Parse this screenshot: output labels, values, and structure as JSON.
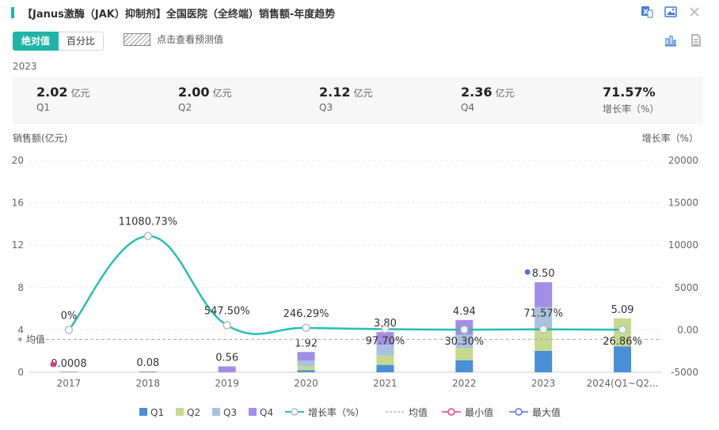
{
  "header": {
    "title": "【Janus激酶（JAK）抑制剂】全国医院（全终端）销售额-年度趋势"
  },
  "toggle": {
    "absolute_label": "绝对值",
    "percent_label": "百分比"
  },
  "forecast_label": "点击查看预测值",
  "summary": {
    "year": "2023",
    "items": [
      {
        "value": "2.02",
        "unit": "亿元",
        "label": "Q1"
      },
      {
        "value": "2.00",
        "unit": "亿元",
        "label": "Q2"
      },
      {
        "value": "2.12",
        "unit": "亿元",
        "label": "Q3"
      },
      {
        "value": "2.36",
        "unit": "亿元",
        "label": "Q4"
      },
      {
        "value": "71.57%",
        "unit": "",
        "label": "增长率（%）"
      }
    ]
  },
  "colors": {
    "accent": "#1fb5a6",
    "Q1": "#4a90d9",
    "Q2": "#c5da8e",
    "Q3": "#a9c2de",
    "Q4": "#a38ee6",
    "growth_line": "#26bfb5",
    "min": "#e0407a",
    "max": "#5b6ee1"
  },
  "chart_data": {
    "type": "bar",
    "stacked": true,
    "ylabel": "销售额(亿元)",
    "y2label": "增长率（%）",
    "ylim": [
      0,
      20
    ],
    "y_ticks": [
      0,
      4,
      8,
      12,
      16,
      20
    ],
    "y2lim": [
      -5000,
      20000
    ],
    "y2_ticks": [
      "-5000",
      "0.00",
      "5000",
      "10000",
      "15000",
      "20000"
    ],
    "categories": [
      "2017",
      "2018",
      "2019",
      "2020",
      "2021",
      "2022",
      "2023",
      "2024(Q1~Q2..."
    ],
    "series": [
      {
        "name": "Q1",
        "values": [
          0,
          0,
          0,
          0.2,
          0.7,
          1.12,
          2.02,
          2.45
        ]
      },
      {
        "name": "Q2",
        "values": [
          0,
          0,
          0,
          0.38,
          0.9,
          1.18,
          2.0,
          2.64
        ]
      },
      {
        "name": "Q3",
        "values": [
          0,
          0,
          0,
          0.52,
          1.0,
          1.25,
          2.12,
          0
        ]
      },
      {
        "name": "Q4",
        "values": [
          0.0008,
          0.08,
          0.56,
          0.82,
          1.2,
          1.39,
          2.36,
          0
        ]
      }
    ],
    "totals": [
      "0.0008",
      "0.08",
      "0.56",
      "1.92",
      "3.80",
      "4.94",
      "8.50",
      "5.09"
    ],
    "growth": {
      "name": "增长率（%）",
      "values": [
        0,
        11080.73,
        547.5,
        246.29,
        97.7,
        30.3,
        71.57,
        26.86
      ],
      "labels": [
        "0%",
        "11080.73%",
        "547.50%",
        "246.29%",
        "97.70%",
        "30.30%",
        "71.57%",
        "26.86%"
      ]
    },
    "average": {
      "name": "均值",
      "value": 3.11,
      "label": "均值"
    },
    "min_marker": {
      "name": "最小值",
      "index": 0
    },
    "max_marker": {
      "name": "最大值",
      "index": 6
    },
    "legend": [
      "Q1",
      "Q2",
      "Q3",
      "Q4",
      "增长率（%）",
      "均值",
      "最小值",
      "最大值"
    ],
    "legend_position": "bottom",
    "grid": true
  }
}
